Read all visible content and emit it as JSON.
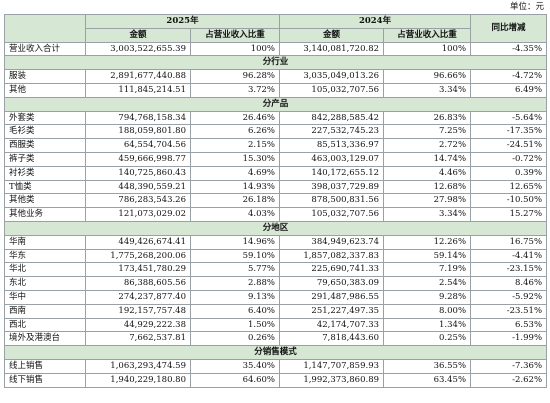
{
  "unit_label": "单位：元",
  "header": {
    "year_2025": "2025年",
    "year_2024": "2024年",
    "yoy": "同比增减",
    "amount": "金额",
    "ratio": "占营业收入比重"
  },
  "total": {
    "label": "营业收入合计",
    "a25": "3,003,522,655.39",
    "r25": "100%",
    "a24": "3,140,081,720.82",
    "r24": "100%",
    "yoy": "-4.35%"
  },
  "sections": [
    {
      "title": "分行业",
      "rows": [
        {
          "label": "服装",
          "a25": "2,891,677,440.88",
          "r25": "96.28%",
          "a24": "3,035,049,013.26",
          "r24": "96.66%",
          "yoy": "-4.72%"
        },
        {
          "label": "其他",
          "a25": "111,845,214.51",
          "r25": "3.72%",
          "a24": "105,032,707.56",
          "r24": "3.34%",
          "yoy": "6.49%"
        }
      ]
    },
    {
      "title": "分产品",
      "rows": [
        {
          "label": "外套类",
          "a25": "794,768,158.34",
          "r25": "26.46%",
          "a24": "842,288,585.42",
          "r24": "26.83%",
          "yoy": "-5.64%"
        },
        {
          "label": "毛衫类",
          "a25": "188,059,801.80",
          "r25": "6.26%",
          "a24": "227,532,745.23",
          "r24": "7.25%",
          "yoy": "-17.35%"
        },
        {
          "label": "西服类",
          "a25": "64,554,704.56",
          "r25": "2.15%",
          "a24": "85,513,336.97",
          "r24": "2.72%",
          "yoy": "-24.51%"
        },
        {
          "label": "裤子类",
          "a25": "459,666,998.77",
          "r25": "15.30%",
          "a24": "463,003,129.07",
          "r24": "14.74%",
          "yoy": "-0.72%"
        },
        {
          "label": "衬衫类",
          "a25": "140,725,860.43",
          "r25": "4.69%",
          "a24": "140,172,655.12",
          "r24": "4.46%",
          "yoy": "0.39%"
        },
        {
          "label": "T恤类",
          "a25": "448,390,559.21",
          "r25": "14.93%",
          "a24": "398,037,729.89",
          "r24": "12.68%",
          "yoy": "12.65%"
        },
        {
          "label": "其他类",
          "a25": "786,283,543.26",
          "r25": "26.18%",
          "a24": "878,500,831.56",
          "r24": "27.98%",
          "yoy": "-10.50%"
        },
        {
          "label": "其他业务",
          "a25": "121,073,029.02",
          "r25": "4.03%",
          "a24": "105,032,707.56",
          "r24": "3.34%",
          "yoy": "15.27%"
        }
      ]
    },
    {
      "title": "分地区",
      "rows": [
        {
          "label": "华南",
          "a25": "449,426,674.41",
          "r25": "14.96%",
          "a24": "384,949,623.74",
          "r24": "12.26%",
          "yoy": "16.75%"
        },
        {
          "label": "华东",
          "a25": "1,775,268,200.06",
          "r25": "59.10%",
          "a24": "1,857,082,337.83",
          "r24": "59.14%",
          "yoy": "-4.41%"
        },
        {
          "label": "华北",
          "a25": "173,451,780.29",
          "r25": "5.77%",
          "a24": "225,690,741.33",
          "r24": "7.19%",
          "yoy": "-23.15%"
        },
        {
          "label": "东北",
          "a25": "86,388,605.56",
          "r25": "2.88%",
          "a24": "79,650,383.09",
          "r24": "2.54%",
          "yoy": "8.46%"
        },
        {
          "label": "华中",
          "a25": "274,237,877.40",
          "r25": "9.13%",
          "a24": "291,487,986.55",
          "r24": "9.28%",
          "yoy": "-5.92%"
        },
        {
          "label": "西南",
          "a25": "192,157,757.48",
          "r25": "6.40%",
          "a24": "251,227,497.35",
          "r24": "8.00%",
          "yoy": "-23.51%"
        },
        {
          "label": "西北",
          "a25": "44,929,222.38",
          "r25": "1.50%",
          "a24": "42,174,707.33",
          "r24": "1.34%",
          "yoy": "6.53%"
        },
        {
          "label": "境外及港澳台",
          "a25": "7,662,537.81",
          "r25": "0.26%",
          "a24": "7,818,443.60",
          "r24": "0.25%",
          "yoy": "-1.99%"
        }
      ]
    },
    {
      "title": "分销售模式",
      "rows": [
        {
          "label": "线上销售",
          "a25": "1,063,293,474.59",
          "r25": "35.40%",
          "a24": "1,147,707,859.93",
          "r24": "36.55%",
          "yoy": "-7.36%"
        },
        {
          "label": "线下销售",
          "a25": "1,940,229,180.80",
          "r25": "64.60%",
          "a24": "1,992,373,860.89",
          "r24": "63.45%",
          "yoy": "-2.62%"
        }
      ]
    }
  ]
}
